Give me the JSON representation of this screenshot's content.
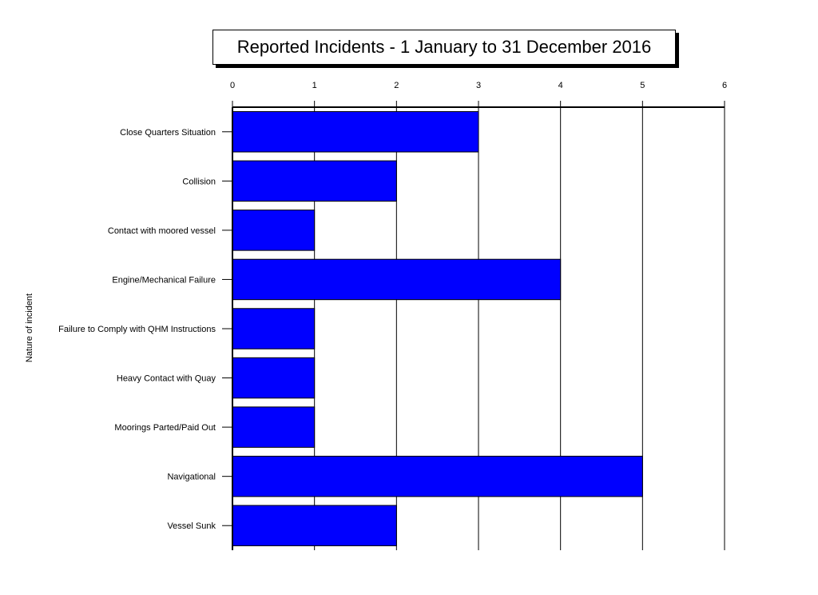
{
  "chart_data": {
    "type": "bar",
    "orientation": "horizontal",
    "title": "Reported Incidents - 1 January to 31 December 2016",
    "xlabel": "",
    "ylabel": "Nature of incident",
    "xlim": [
      0,
      6
    ],
    "x_ticks": [
      0,
      1,
      2,
      3,
      4,
      5,
      6
    ],
    "grid": "vertical",
    "bar_color": "#0000ff",
    "categories": [
      "Close Quarters Situation",
      "Collision",
      "Contact with moored vessel",
      "Engine/Mechanical Failure",
      "Failure to Comply with QHM Instructions",
      "Heavy Contact with Quay",
      "Moorings Parted/Paid Out",
      "Navigational",
      "Vessel Sunk"
    ],
    "values": [
      3,
      2,
      1,
      4,
      1,
      1,
      1,
      5,
      2
    ]
  }
}
